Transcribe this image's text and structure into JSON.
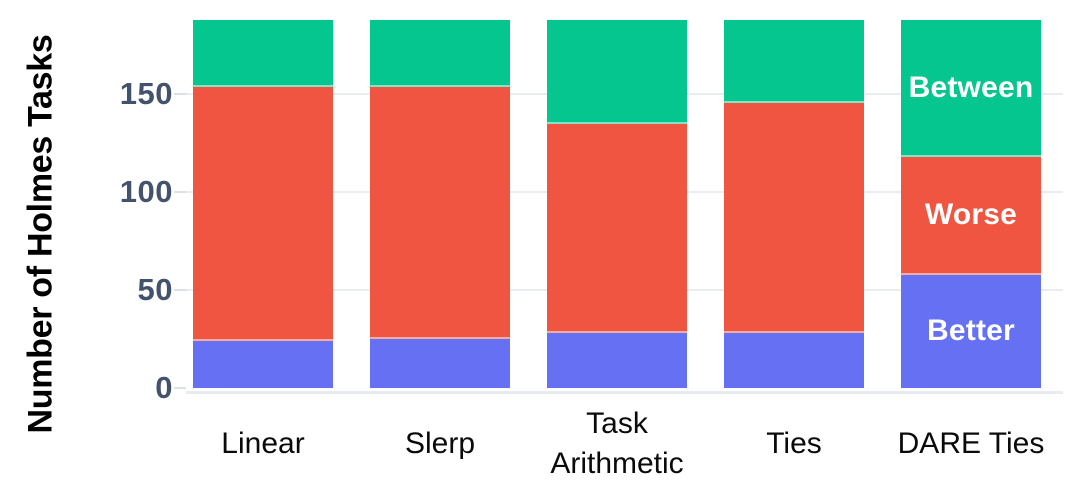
{
  "chart_data": {
    "type": "bar",
    "stacked": true,
    "title": "",
    "xlabel": "",
    "ylabel": "Number of Holmes Tasks",
    "categories": [
      "Linear",
      "Slerp",
      "Task Arithmetic",
      "Ties",
      "DARE Ties"
    ],
    "series": [
      {
        "name": "Better",
        "color": "#6570f3",
        "values": [
          24,
          25,
          28,
          28,
          58
        ]
      },
      {
        "name": "Worse",
        "color": "#ef5540",
        "values": [
          130,
          129,
          107,
          118,
          60
        ]
      },
      {
        "name": "Between",
        "color": "#06c68f",
        "values": [
          34,
          34,
          53,
          42,
          70
        ]
      }
    ],
    "bar_totals": [
      188,
      188,
      188,
      188,
      188
    ],
    "yticks": [
      0,
      50,
      100,
      150
    ],
    "ylim": [
      0,
      190
    ],
    "grid": "horizontal gridlines at y ticks, drawn behind bars",
    "legend": {
      "position": "inside-last-bar",
      "entries_top_to_bottom": [
        "Between",
        "Worse",
        "Better"
      ]
    },
    "colors": {
      "better_segment": "#6570f3",
      "worse_segment": "#ef5540",
      "between_segment": "#06c68f",
      "segment_label_text": "#ffffff",
      "ytick_label": "#44536d",
      "category_label": "#0a0a0a",
      "axis_title": "#000000",
      "gridline": "#e9edf3",
      "axis_line": "#e8ebf1",
      "tick_mark": "#dce1e9",
      "background": "#ffffff"
    }
  }
}
